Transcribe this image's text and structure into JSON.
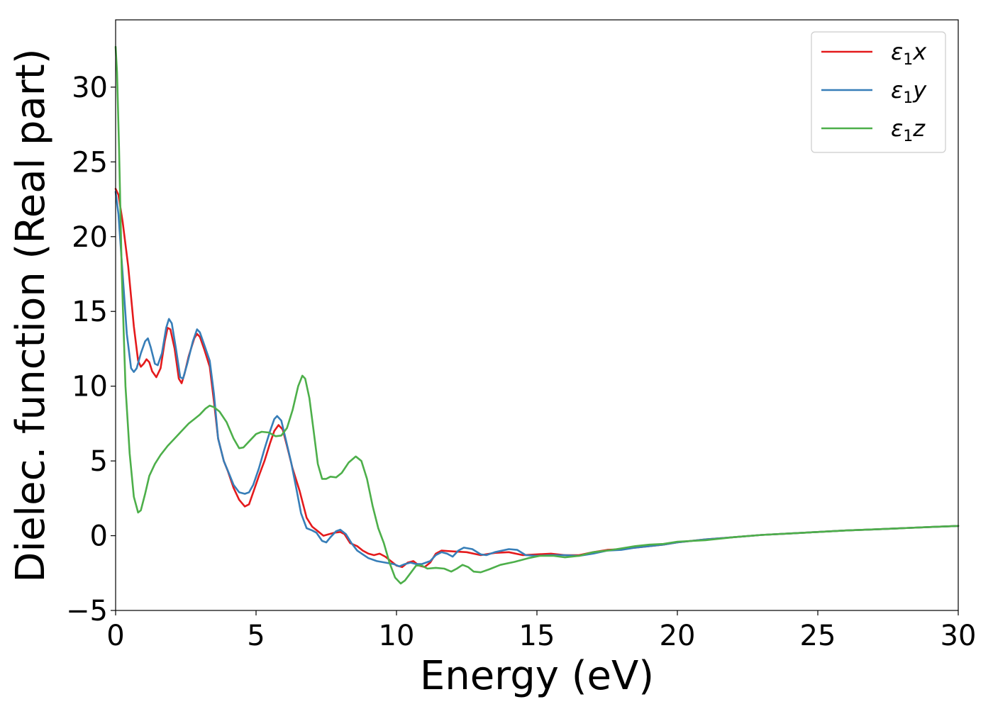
{
  "chart_data": {
    "type": "line",
    "title": "",
    "xlabel": "Energy (eV)",
    "ylabel": "Dielec. function (Real part)",
    "xlim": [
      0,
      30
    ],
    "ylim": [
      -5,
      34.5
    ],
    "xticks": [
      0,
      5,
      10,
      15,
      20,
      25,
      30
    ],
    "yticks": [
      -5,
      0,
      5,
      10,
      15,
      20,
      25,
      30
    ],
    "xtick_labels": [
      "0",
      "5",
      "10",
      "15",
      "20",
      "25",
      "30"
    ],
    "ytick_labels": [
      "−5",
      "0",
      "5",
      "10",
      "15",
      "20",
      "25",
      "30"
    ],
    "grid": false,
    "legend_position": "top-right",
    "series": [
      {
        "name": "ε1x",
        "legend_base": "ε",
        "legend_sub": "1",
        "legend_var": "x",
        "color": "#e41a1c",
        "points": [
          [
            0,
            23.2
          ],
          [
            0.1,
            22.8
          ],
          [
            0.25,
            21
          ],
          [
            0.45,
            18
          ],
          [
            0.65,
            14
          ],
          [
            0.8,
            11.7
          ],
          [
            0.9,
            11.3
          ],
          [
            1.0,
            11.5
          ],
          [
            1.1,
            11.8
          ],
          [
            1.2,
            11.6
          ],
          [
            1.3,
            11.0
          ],
          [
            1.45,
            10.6
          ],
          [
            1.6,
            11.2
          ],
          [
            1.75,
            13.0
          ],
          [
            1.85,
            13.9
          ],
          [
            1.95,
            13.8
          ],
          [
            2.1,
            12.5
          ],
          [
            2.25,
            10.5
          ],
          [
            2.35,
            10.2
          ],
          [
            2.45,
            10.8
          ],
          [
            2.6,
            12.0
          ],
          [
            2.8,
            13.2
          ],
          [
            2.9,
            13.5
          ],
          [
            3.0,
            13.3
          ],
          [
            3.15,
            12.5
          ],
          [
            3.35,
            11.3
          ],
          [
            3.5,
            9.0
          ],
          [
            3.65,
            6.5
          ],
          [
            3.85,
            5.0
          ],
          [
            4.0,
            4.3
          ],
          [
            4.2,
            3.2
          ],
          [
            4.4,
            2.4
          ],
          [
            4.6,
            1.95
          ],
          [
            4.75,
            2.1
          ],
          [
            4.9,
            2.9
          ],
          [
            5.1,
            4.0
          ],
          [
            5.3,
            5.0
          ],
          [
            5.5,
            6.2
          ],
          [
            5.65,
            7.0
          ],
          [
            5.8,
            7.4
          ],
          [
            5.95,
            7.1
          ],
          [
            6.1,
            6.0
          ],
          [
            6.3,
            4.5
          ],
          [
            6.55,
            3.0
          ],
          [
            6.8,
            1.2
          ],
          [
            7.0,
            0.6
          ],
          [
            7.2,
            0.3
          ],
          [
            7.4,
            0.0
          ],
          [
            7.6,
            0.1
          ],
          [
            7.8,
            0.2
          ],
          [
            8.0,
            0.25
          ],
          [
            8.15,
            0.1
          ],
          [
            8.35,
            -0.5
          ],
          [
            8.6,
            -0.7
          ],
          [
            8.8,
            -1.0
          ],
          [
            9.0,
            -1.2
          ],
          [
            9.2,
            -1.3
          ],
          [
            9.4,
            -1.2
          ],
          [
            9.6,
            -1.4
          ],
          [
            9.8,
            -1.7
          ],
          [
            10.0,
            -2.0
          ],
          [
            10.2,
            -2.1
          ],
          [
            10.4,
            -1.8
          ],
          [
            10.6,
            -1.7
          ],
          [
            10.8,
            -2.0
          ],
          [
            11.0,
            -2.1
          ],
          [
            11.2,
            -1.8
          ],
          [
            11.4,
            -1.2
          ],
          [
            11.6,
            -1.0
          ],
          [
            12.0,
            -1.05
          ],
          [
            12.5,
            -1.1
          ],
          [
            13.0,
            -1.3
          ],
          [
            13.5,
            -1.15
          ],
          [
            14.0,
            -1.1
          ],
          [
            14.5,
            -1.3
          ],
          [
            15.0,
            -1.25
          ],
          [
            15.5,
            -1.2
          ],
          [
            16.0,
            -1.3
          ],
          [
            16.5,
            -1.3
          ],
          [
            17.0,
            -1.1
          ],
          [
            17.5,
            -0.95
          ],
          [
            18.0,
            -0.9
          ],
          [
            18.5,
            -0.8
          ],
          [
            19.0,
            -0.7
          ],
          [
            19.5,
            -0.6
          ],
          [
            20.0,
            -0.45
          ],
          [
            21.0,
            -0.25
          ],
          [
            22.0,
            -0.1
          ],
          [
            23.0,
            0.05
          ],
          [
            24.0,
            0.15
          ],
          [
            25.0,
            0.25
          ],
          [
            26.0,
            0.35
          ],
          [
            27.0,
            0.42
          ],
          [
            28.0,
            0.5
          ],
          [
            29.0,
            0.58
          ],
          [
            30.0,
            0.65
          ]
        ]
      },
      {
        "name": "ε1y",
        "legend_base": "ε",
        "legend_sub": "1",
        "legend_var": "y",
        "color": "#377eb8",
        "points": [
          [
            0,
            23.0
          ],
          [
            0.1,
            21.5
          ],
          [
            0.25,
            17.5
          ],
          [
            0.4,
            13.5
          ],
          [
            0.55,
            11.2
          ],
          [
            0.65,
            10.95
          ],
          [
            0.75,
            11.2
          ],
          [
            0.9,
            12.2
          ],
          [
            1.05,
            13.0
          ],
          [
            1.15,
            13.2
          ],
          [
            1.25,
            12.6
          ],
          [
            1.4,
            11.5
          ],
          [
            1.5,
            11.4
          ],
          [
            1.65,
            12.2
          ],
          [
            1.8,
            13.9
          ],
          [
            1.9,
            14.5
          ],
          [
            2.0,
            14.2
          ],
          [
            2.15,
            12.5
          ],
          [
            2.3,
            10.6
          ],
          [
            2.4,
            10.5
          ],
          [
            2.55,
            11.5
          ],
          [
            2.75,
            13.0
          ],
          [
            2.9,
            13.8
          ],
          [
            3.0,
            13.6
          ],
          [
            3.15,
            12.8
          ],
          [
            3.35,
            11.7
          ],
          [
            3.5,
            9.5
          ],
          [
            3.65,
            6.5
          ],
          [
            3.85,
            5.0
          ],
          [
            4.05,
            4.1
          ],
          [
            4.2,
            3.4
          ],
          [
            4.4,
            2.9
          ],
          [
            4.6,
            2.8
          ],
          [
            4.75,
            2.9
          ],
          [
            4.9,
            3.4
          ],
          [
            5.1,
            4.5
          ],
          [
            5.3,
            5.8
          ],
          [
            5.5,
            7.0
          ],
          [
            5.65,
            7.8
          ],
          [
            5.75,
            8.0
          ],
          [
            5.9,
            7.7
          ],
          [
            6.05,
            6.5
          ],
          [
            6.25,
            4.9
          ],
          [
            6.45,
            3.0
          ],
          [
            6.6,
            1.5
          ],
          [
            6.8,
            0.5
          ],
          [
            7.0,
            0.35
          ],
          [
            7.15,
            0.2
          ],
          [
            7.35,
            -0.35
          ],
          [
            7.5,
            -0.45
          ],
          [
            7.65,
            -0.1
          ],
          [
            7.85,
            0.3
          ],
          [
            8.0,
            0.4
          ],
          [
            8.2,
            0.1
          ],
          [
            8.4,
            -0.5
          ],
          [
            8.6,
            -1.0
          ],
          [
            8.8,
            -1.25
          ],
          [
            9.0,
            -1.5
          ],
          [
            9.3,
            -1.7
          ],
          [
            9.6,
            -1.8
          ],
          [
            9.9,
            -1.9
          ],
          [
            10.1,
            -2.05
          ],
          [
            10.3,
            -1.9
          ],
          [
            10.5,
            -1.8
          ],
          [
            10.7,
            -1.9
          ],
          [
            10.9,
            -1.9
          ],
          [
            11.2,
            -1.7
          ],
          [
            11.4,
            -1.3
          ],
          [
            11.6,
            -1.1
          ],
          [
            11.8,
            -1.2
          ],
          [
            12.0,
            -1.4
          ],
          [
            12.2,
            -1.0
          ],
          [
            12.4,
            -0.8
          ],
          [
            12.7,
            -0.9
          ],
          [
            13.0,
            -1.25
          ],
          [
            13.2,
            -1.3
          ],
          [
            13.5,
            -1.1
          ],
          [
            14.0,
            -0.9
          ],
          [
            14.3,
            -0.95
          ],
          [
            14.6,
            -1.3
          ],
          [
            15.0,
            -1.35
          ],
          [
            15.5,
            -1.3
          ],
          [
            16.0,
            -1.3
          ],
          [
            16.5,
            -1.35
          ],
          [
            17.0,
            -1.2
          ],
          [
            17.5,
            -1.0
          ],
          [
            18.0,
            -0.95
          ],
          [
            18.5,
            -0.8
          ],
          [
            19.0,
            -0.7
          ],
          [
            19.5,
            -0.6
          ],
          [
            20.0,
            -0.45
          ],
          [
            21.0,
            -0.25
          ],
          [
            22.0,
            -0.1
          ],
          [
            23.0,
            0.05
          ],
          [
            24.0,
            0.15
          ],
          [
            25.0,
            0.25
          ],
          [
            26.0,
            0.35
          ],
          [
            27.0,
            0.42
          ],
          [
            28.0,
            0.5
          ],
          [
            29.0,
            0.58
          ],
          [
            30.0,
            0.65
          ]
        ]
      },
      {
        "name": "ε1z",
        "legend_base": "ε",
        "legend_sub": "1",
        "legend_var": "z",
        "color": "#4daf4a",
        "points": [
          [
            0,
            32.7
          ],
          [
            0.05,
            31
          ],
          [
            0.12,
            26
          ],
          [
            0.22,
            17.5
          ],
          [
            0.35,
            10
          ],
          [
            0.5,
            5.5
          ],
          [
            0.65,
            2.6
          ],
          [
            0.8,
            1.55
          ],
          [
            0.9,
            1.7
          ],
          [
            1.05,
            2.8
          ],
          [
            1.2,
            4.0
          ],
          [
            1.4,
            4.8
          ],
          [
            1.6,
            5.4
          ],
          [
            1.85,
            6.0
          ],
          [
            2.1,
            6.5
          ],
          [
            2.35,
            7.0
          ],
          [
            2.6,
            7.5
          ],
          [
            2.8,
            7.8
          ],
          [
            3.0,
            8.1
          ],
          [
            3.2,
            8.5
          ],
          [
            3.35,
            8.7
          ],
          [
            3.5,
            8.6
          ],
          [
            3.7,
            8.3
          ],
          [
            3.95,
            7.6
          ],
          [
            4.2,
            6.5
          ],
          [
            4.4,
            5.85
          ],
          [
            4.55,
            5.9
          ],
          [
            4.75,
            6.3
          ],
          [
            5.0,
            6.8
          ],
          [
            5.2,
            6.95
          ],
          [
            5.45,
            6.9
          ],
          [
            5.7,
            6.65
          ],
          [
            5.9,
            6.7
          ],
          [
            6.1,
            7.2
          ],
          [
            6.3,
            8.4
          ],
          [
            6.5,
            10.0
          ],
          [
            6.65,
            10.7
          ],
          [
            6.75,
            10.5
          ],
          [
            6.9,
            9.2
          ],
          [
            7.05,
            7.0
          ],
          [
            7.2,
            4.8
          ],
          [
            7.35,
            3.8
          ],
          [
            7.5,
            3.8
          ],
          [
            7.65,
            3.95
          ],
          [
            7.85,
            3.9
          ],
          [
            8.05,
            4.2
          ],
          [
            8.3,
            4.9
          ],
          [
            8.55,
            5.3
          ],
          [
            8.75,
            5.0
          ],
          [
            8.95,
            3.8
          ],
          [
            9.15,
            2.0
          ],
          [
            9.35,
            0.5
          ],
          [
            9.55,
            -0.5
          ],
          [
            9.75,
            -1.8
          ],
          [
            9.95,
            -2.8
          ],
          [
            10.15,
            -3.2
          ],
          [
            10.3,
            -3.0
          ],
          [
            10.5,
            -2.5
          ],
          [
            10.7,
            -2.0
          ],
          [
            10.9,
            -2.0
          ],
          [
            11.1,
            -2.2
          ],
          [
            11.4,
            -2.15
          ],
          [
            11.7,
            -2.2
          ],
          [
            11.95,
            -2.4
          ],
          [
            12.15,
            -2.2
          ],
          [
            12.35,
            -1.95
          ],
          [
            12.55,
            -2.1
          ],
          [
            12.75,
            -2.4
          ],
          [
            13.0,
            -2.45
          ],
          [
            13.3,
            -2.25
          ],
          [
            13.7,
            -1.95
          ],
          [
            14.2,
            -1.75
          ],
          [
            14.7,
            -1.5
          ],
          [
            15.1,
            -1.35
          ],
          [
            15.6,
            -1.35
          ],
          [
            16.0,
            -1.45
          ],
          [
            16.5,
            -1.35
          ],
          [
            17.0,
            -1.1
          ],
          [
            17.5,
            -1.0
          ],
          [
            18.0,
            -0.85
          ],
          [
            18.5,
            -0.7
          ],
          [
            19.0,
            -0.6
          ],
          [
            19.5,
            -0.55
          ],
          [
            20.0,
            -0.4
          ],
          [
            21.0,
            -0.3
          ],
          [
            22.0,
            -0.1
          ],
          [
            23.0,
            0.05
          ],
          [
            24.0,
            0.15
          ],
          [
            25.0,
            0.25
          ],
          [
            26.0,
            0.35
          ],
          [
            27.0,
            0.42
          ],
          [
            28.0,
            0.5
          ],
          [
            29.0,
            0.58
          ],
          [
            30.0,
            0.65
          ]
        ]
      }
    ]
  }
}
